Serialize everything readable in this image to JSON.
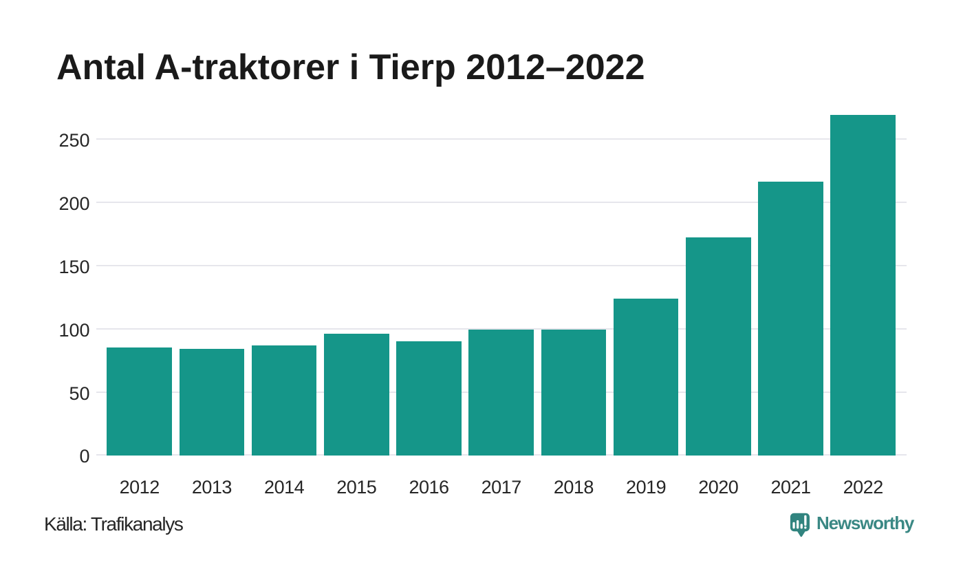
{
  "title": "Antal A-traktorer i Tierp 2012–2022",
  "source_note": "Källa: Trafikanalys",
  "logo": {
    "text": "Newsworthy"
  },
  "colors": {
    "bar": "#159689",
    "grid": "#e6e6ec",
    "title": "#1a1a1a",
    "tick_text": "#262626",
    "source_text": "#262626",
    "logo_icon": "#31847f",
    "logo_text": "#3a8884",
    "background": "#ffffff"
  },
  "chart_data": {
    "type": "bar",
    "title": "Antal A-traktorer i Tierp 2012–2022",
    "categories": [
      "2012",
      "2013",
      "2014",
      "2015",
      "2016",
      "2017",
      "2018",
      "2019",
      "2020",
      "2021",
      "2022"
    ],
    "values": [
      85,
      84,
      87,
      96,
      90,
      99,
      99,
      124,
      172,
      216,
      269
    ],
    "xlabel": "",
    "ylabel": "",
    "yticks": [
      0,
      50,
      100,
      150,
      200,
      250
    ],
    "ylim": [
      0,
      269
    ],
    "grid": "horizontal",
    "legend": "none",
    "source": "Källa: Trafikanalys"
  }
}
